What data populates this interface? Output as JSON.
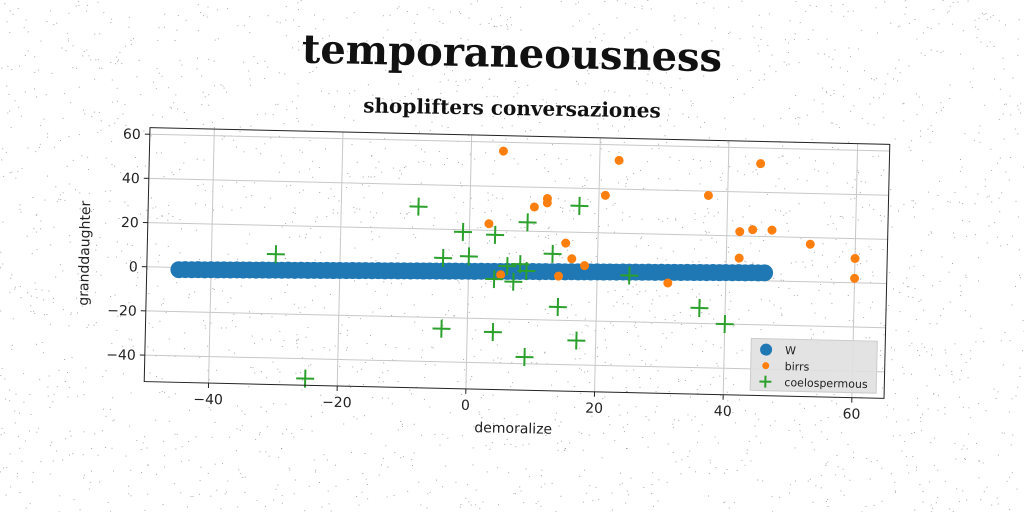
{
  "page": {
    "title": "temporaneousness"
  },
  "chart_data": {
    "type": "scatter",
    "title": "shoplifters conversaziones",
    "xlabel": "demoralize",
    "ylabel": "granddaughter",
    "xlim": [
      -50,
      65
    ],
    "ylim": [
      -52,
      63
    ],
    "xticks": [
      -40,
      -20,
      0,
      20,
      40,
      60
    ],
    "yticks": [
      -40,
      -20,
      0,
      20,
      40,
      60
    ],
    "grid": true,
    "legend_position": "bottom-right",
    "series": [
      {
        "name": "W",
        "marker": "large-circle",
        "color": "#1f77b4",
        "x": [
          -45,
          -44,
          -43,
          -42,
          -41,
          -40,
          -39,
          -38,
          -37,
          -36,
          -35,
          -34,
          -33,
          -32,
          -31,
          -30,
          -29,
          -28,
          -27,
          -26,
          -25,
          -24,
          -23,
          -22,
          -21,
          -20,
          -19,
          -18,
          -17,
          -16,
          -15,
          -14,
          -13,
          -12,
          -11,
          -10,
          -9,
          -8,
          -7,
          -6,
          -5,
          -4,
          -3,
          -2,
          -1,
          0,
          1,
          2,
          3,
          4,
          5,
          6,
          7,
          8,
          9,
          10,
          11,
          12,
          13,
          14,
          15,
          16,
          17,
          18,
          19,
          20,
          21,
          22,
          23,
          24,
          25,
          26,
          27,
          28,
          29,
          30,
          31,
          32,
          33,
          34,
          35,
          36,
          37,
          38,
          39,
          40,
          41,
          42,
          43,
          44,
          45,
          46
        ],
        "y": [
          -1.0,
          -0.9,
          -0.9,
          -0.8,
          -0.8,
          -0.7,
          -0.7,
          -0.6,
          -0.6,
          -0.5,
          -0.5,
          -0.4,
          -0.4,
          -0.3,
          -0.3,
          -0.2,
          -0.2,
          -0.1,
          -0.1,
          0.0,
          0.0,
          0.1,
          0.1,
          0.2,
          0.2,
          0.3,
          0.3,
          0.4,
          0.4,
          0.5,
          0.5,
          0.6,
          0.6,
          0.7,
          0.7,
          0.8,
          0.8,
          0.9,
          0.9,
          1.0,
          1.0,
          1.1,
          1.1,
          1.2,
          1.2,
          1.3,
          1.3,
          1.4,
          1.4,
          1.5,
          1.5,
          1.6,
          1.6,
          1.7,
          1.7,
          1.8,
          1.8,
          1.9,
          1.9,
          2.0,
          2.0,
          2.1,
          2.1,
          2.2,
          2.2,
          2.3,
          2.3,
          2.4,
          2.4,
          2.5,
          2.5,
          2.6,
          2.6,
          2.7,
          2.7,
          2.8,
          2.8,
          2.9,
          2.9,
          3.0,
          3.0,
          3.1,
          3.1,
          3.2,
          3.2,
          3.3,
          3.3,
          3.4,
          3.4,
          3.5,
          3.5,
          3.6
        ]
      },
      {
        "name": "birrs",
        "marker": "small-circle",
        "color": "#ff7f0e",
        "x": [
          5,
          23,
          45,
          10,
          12,
          12,
          21,
          37,
          3,
          15,
          16,
          42,
          44,
          47,
          53,
          60,
          60,
          42,
          5,
          14,
          18,
          31
        ],
        "y": [
          56,
          53,
          53,
          31,
          35,
          33,
          37,
          38,
          23,
          15,
          8,
          22,
          23,
          23,
          17,
          11,
          2,
          10,
          0,
          0,
          5,
          -2
        ]
      },
      {
        "name": "coelospermous",
        "marker": "plus",
        "color": "#2ca02c",
        "x": [
          -30,
          -8,
          -1,
          4,
          9,
          13,
          17,
          -4,
          0,
          6,
          8,
          9,
          4,
          7,
          25,
          -25,
          -4,
          4,
          9,
          14,
          17,
          36,
          40
        ],
        "y": [
          7,
          30,
          19,
          18,
          24,
          10,
          32,
          7,
          8,
          4,
          5,
          2,
          -2,
          -3,
          1,
          -49,
          -25,
          -26,
          -37,
          -14,
          -29,
          -13,
          -20
        ]
      }
    ]
  }
}
